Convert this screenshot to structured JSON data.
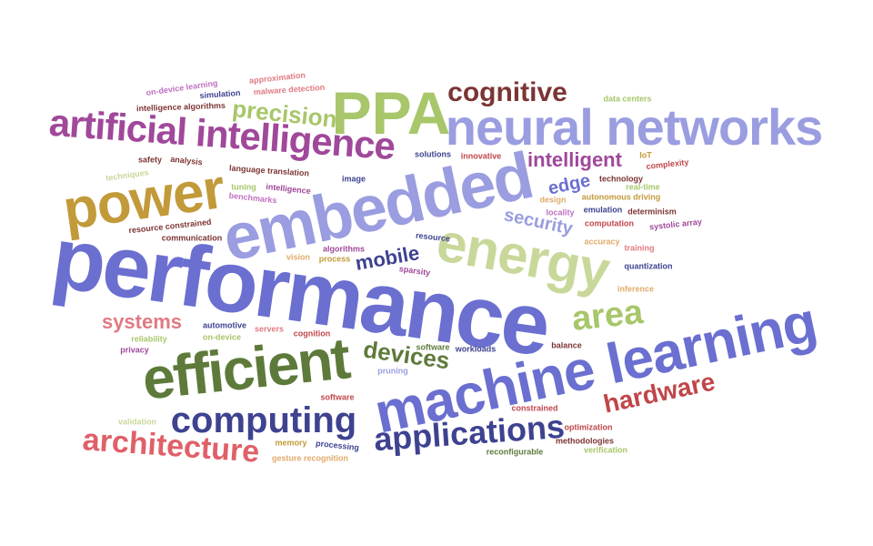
{
  "colors": {
    "indigo": "#6a6fd0",
    "periwinkle": "#9a9de0",
    "navy": "#3e4290",
    "olive": "#5e7a3a",
    "lightgreen": "#a8c66a",
    "sage": "#c8d89a",
    "gold": "#c29a3a",
    "maroon": "#7c3434",
    "red": "#c0464a",
    "pink": "#e07a82",
    "magenta": "#a0489a",
    "orchid": "#c070c0",
    "tan": "#e0aa6a",
    "green": "#7aa03a"
  },
  "words": [
    "performance",
    "machine learning",
    "embedded",
    "efficient",
    "energy",
    "neural networks",
    "power",
    "artificial intelligence",
    "PPA",
    "computing",
    "applications",
    "architecture",
    "hardware",
    "area",
    "cognitive",
    "precision",
    "intelligent",
    "devices",
    "security",
    "edge",
    "mobile",
    "systems",
    "on-device learning",
    "approximation",
    "simulation",
    "malware detection",
    "intelligence algorithms",
    "safety",
    "analysis",
    "techniques",
    "language translation",
    "tuning",
    "intelligence",
    "benchmarks",
    "image",
    "solutions",
    "innovative",
    "IoT",
    "complexity",
    "technology",
    "real-time",
    "design",
    "autonomous driving",
    "locality",
    "emulation",
    "determinism",
    "systolic array",
    "computation",
    "accuracy",
    "training",
    "quantization",
    "inference",
    "resource constrained",
    "communication",
    "algorithms",
    "vision",
    "process",
    "resource",
    "sparsity",
    "automotive",
    "servers",
    "cognition",
    "on-device",
    "reliability",
    "privacy",
    "software",
    "workloads",
    "balance",
    "pruning",
    "constrained",
    "validation",
    "memory",
    "processing",
    "gesture recognition",
    "reconfigurable",
    "optimization",
    "methodologies",
    "verification",
    "data centers"
  ]
}
